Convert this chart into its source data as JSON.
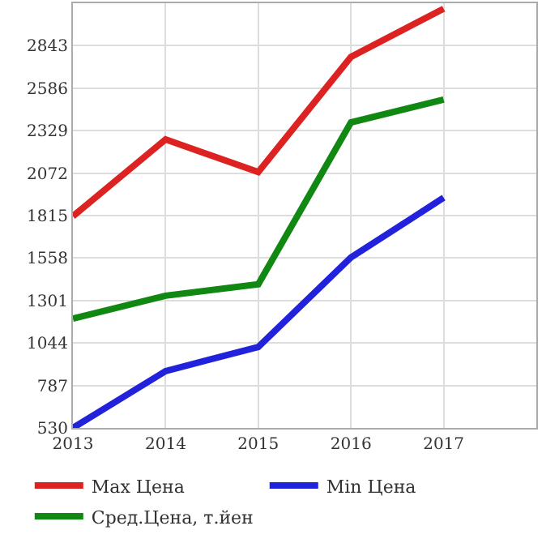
{
  "chart_data": {
    "type": "line",
    "x": [
      2013,
      2014,
      2015,
      2016,
      2017
    ],
    "series": [
      {
        "name": "Max Цена",
        "color": "#dd2222",
        "values": [
          1811,
          2276,
          2078,
          2775,
          3067
        ]
      },
      {
        "name": "Min Цена",
        "color": "#2222dd",
        "values": [
          530,
          874,
          1020,
          1562,
          1923
        ]
      },
      {
        "name": "Сред.Цена, т.йен",
        "color": "#118811",
        "values": [
          1192,
          1330,
          1399,
          2379,
          2517
        ]
      }
    ],
    "xlim": [
      2013,
      2018
    ],
    "xticks": [
      2013,
      2014,
      2015,
      2016,
      2017
    ],
    "ylim": [
      530,
      3100
    ],
    "yticks": [
      530,
      787,
      1044,
      1301,
      1558,
      1815,
      2072,
      2329,
      2586,
      2843
    ],
    "grid": true,
    "legend": "bottom",
    "marker": "none",
    "line_style": "solid"
  }
}
